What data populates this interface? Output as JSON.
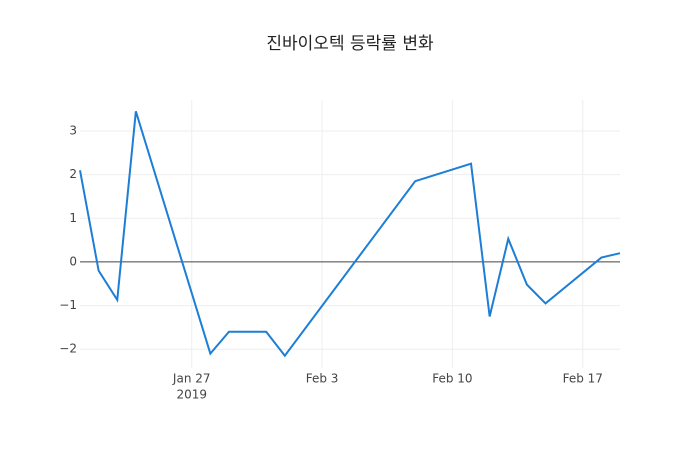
{
  "chart_data": {
    "type": "line",
    "title": "진바이오텍 등락률 변화",
    "x": [
      "2019-01-21",
      "2019-01-22",
      "2019-01-23",
      "2019-01-24",
      "2019-01-28",
      "2019-01-29",
      "2019-01-31",
      "2019-02-01",
      "2019-02-08",
      "2019-02-11",
      "2019-02-12",
      "2019-02-13",
      "2019-02-14",
      "2019-02-15",
      "2019-02-18",
      "2019-02-19"
    ],
    "series": [
      {
        "color": "#1c7ed6",
        "values": [
          2.1,
          -0.2,
          -0.87,
          3.45,
          -2.1,
          -1.6,
          -1.6,
          -2.15,
          1.85,
          2.25,
          -1.25,
          0.53,
          -0.52,
          -0.95,
          0.1,
          0.2
        ]
      }
    ],
    "xlim": [
      "2019-01-21",
      "2019-02-19"
    ],
    "xticks": [
      {
        "value": "2019-01-27",
        "label": "Jan 27"
      },
      {
        "value": "2019-02-03",
        "label": "Feb 3"
      },
      {
        "value": "2019-02-10",
        "label": "Feb 10"
      },
      {
        "value": "2019-02-17",
        "label": "Feb 17"
      }
    ],
    "x_year_label": "2019",
    "ylim": [
      -2.43,
      3.71
    ],
    "yticks": [
      {
        "value": -2,
        "label": "−2"
      },
      {
        "value": -1,
        "label": "−1"
      },
      0,
      1,
      2,
      3
    ],
    "grid": true,
    "zeroline": true
  }
}
